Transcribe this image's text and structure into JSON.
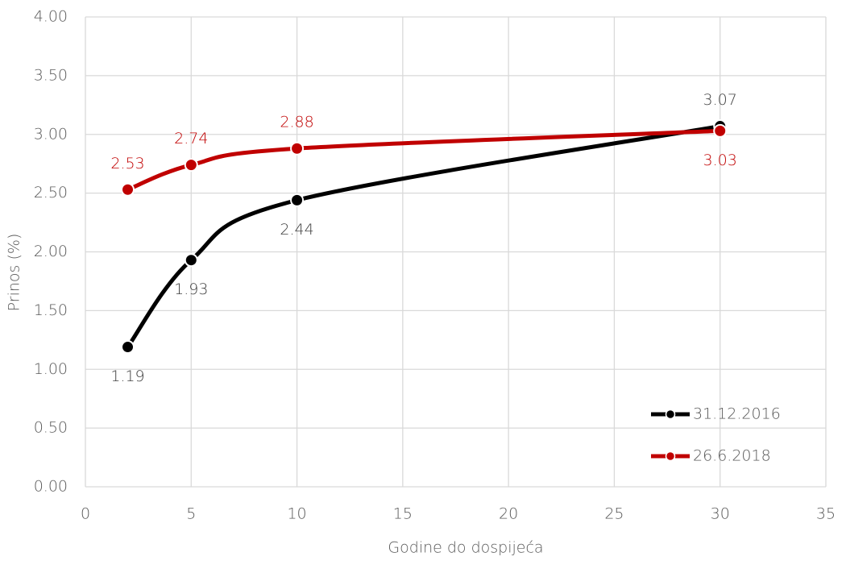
{
  "chart_data": {
    "type": "line",
    "x_label": "Godine do dospijeća",
    "y_label": "Prinos (%)",
    "x": [
      2,
      5,
      10,
      30
    ],
    "series": [
      {
        "name": "31.12.2016",
        "color": "#000000",
        "values": [
          1.19,
          1.93,
          2.44,
          3.07
        ]
      },
      {
        "name": "26.6.2018",
        "color": "#c00000",
        "values": [
          2.53,
          2.74,
          2.88,
          3.03
        ]
      }
    ],
    "xlim": [
      0,
      35
    ],
    "xticks": [
      0,
      5,
      10,
      15,
      20,
      25,
      30,
      35
    ],
    "ylim": [
      0,
      4
    ],
    "yticks": [
      {
        "value": 0,
        "label": "0.00"
      },
      {
        "value": 0.5,
        "label": "0.50"
      },
      {
        "value": 1,
        "label": "1.00"
      },
      {
        "value": 1.5,
        "label": "1.50"
      },
      {
        "value": 2,
        "label": "2.00"
      },
      {
        "value": 2.5,
        "label": "2.50"
      },
      {
        "value": 3,
        "label": "3.00"
      },
      {
        "value": 3.5,
        "label": "3.50"
      },
      {
        "value": 4,
        "label": "4.00"
      }
    ],
    "grid": true,
    "smooth": true,
    "legend": "lower right"
  }
}
